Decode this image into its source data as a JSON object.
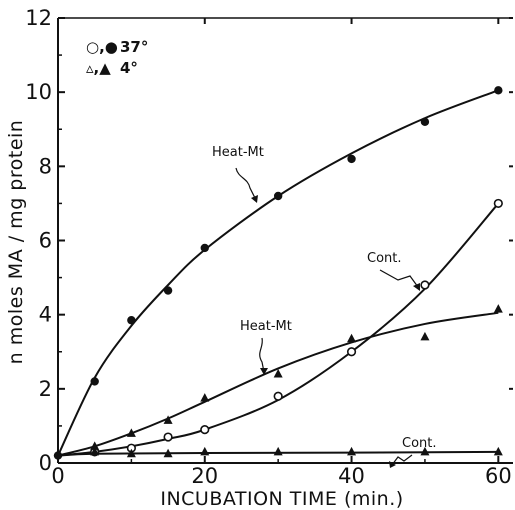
{
  "chart_data": {
    "type": "scatter",
    "title": "",
    "xlabel": "INCUBATION  TIME  (min.)",
    "ylabel": "n moles MA / mg protein",
    "xlim": [
      0,
      62
    ],
    "ylim": [
      0,
      12
    ],
    "x_ticks": [
      "0",
      "20",
      "40",
      "60"
    ],
    "y_ticks": [
      "0",
      "2",
      "4",
      "6",
      "8",
      "10",
      "12"
    ],
    "grid": false,
    "legend": {
      "placement": "top-left",
      "entries": [
        {
          "symbols": "○,●",
          "label": "37°"
        },
        {
          "symbols": "▵,▲",
          "label": "4°"
        }
      ]
    },
    "series": [
      {
        "name": "Heat-Mt",
        "marker": "filled-circle",
        "x": [
          0,
          5,
          10,
          15,
          20,
          30,
          40,
          50,
          60
        ],
        "y": [
          0.2,
          2.2,
          3.85,
          4.65,
          5.8,
          7.2,
          8.2,
          9.2,
          10.05
        ],
        "curve": [
          [
            0,
            0.2
          ],
          [
            5,
            2.3
          ],
          [
            10,
            3.7
          ],
          [
            15,
            4.8
          ],
          [
            20,
            5.75
          ],
          [
            30,
            7.2
          ],
          [
            40,
            8.35
          ],
          [
            50,
            9.3
          ],
          [
            60,
            10.05
          ]
        ]
      },
      {
        "name": "Cont.",
        "marker": "open-circle",
        "x": [
          5,
          10,
          15,
          20,
          30,
          40,
          50,
          60
        ],
        "y": [
          0.3,
          0.4,
          0.7,
          0.9,
          1.8,
          3.0,
          4.8,
          7.0
        ],
        "curve": [
          [
            0,
            0.2
          ],
          [
            5,
            0.3
          ],
          [
            10,
            0.45
          ],
          [
            15,
            0.65
          ],
          [
            20,
            0.9
          ],
          [
            30,
            1.7
          ],
          [
            40,
            3.0
          ],
          [
            50,
            4.7
          ],
          [
            60,
            7.0
          ]
        ]
      },
      {
        "name": "Heat-Mt",
        "marker": "filled-triangle",
        "x": [
          5,
          10,
          15,
          20,
          30,
          40,
          50,
          60
        ],
        "y": [
          0.45,
          0.8,
          1.15,
          1.75,
          2.4,
          3.35,
          3.4,
          4.15
        ],
        "curve": [
          [
            0,
            0.2
          ],
          [
            5,
            0.45
          ],
          [
            10,
            0.8
          ],
          [
            15,
            1.2
          ],
          [
            20,
            1.65
          ],
          [
            30,
            2.55
          ],
          [
            40,
            3.25
          ],
          [
            50,
            3.75
          ],
          [
            60,
            4.05
          ]
        ]
      },
      {
        "name": "Cont.",
        "marker": "filled-triangle",
        "x": [
          5,
          10,
          15,
          20,
          30,
          40,
          50,
          60
        ],
        "y": [
          0.3,
          0.25,
          0.25,
          0.3,
          0.3,
          0.3,
          0.3,
          0.3
        ],
        "curve": [
          [
            0,
            0.2
          ],
          [
            5,
            0.25
          ],
          [
            20,
            0.27
          ],
          [
            40,
            0.28
          ],
          [
            60,
            0.3
          ]
        ]
      }
    ],
    "annotations": [
      {
        "text": "Heat-Mt",
        "points_to": "series 1"
      },
      {
        "text": "Cont.",
        "points_to": "series 2"
      },
      {
        "text": "Heat-Mt",
        "points_to": "series 3"
      },
      {
        "text": "Cont.",
        "points_to": "series 4"
      }
    ]
  }
}
